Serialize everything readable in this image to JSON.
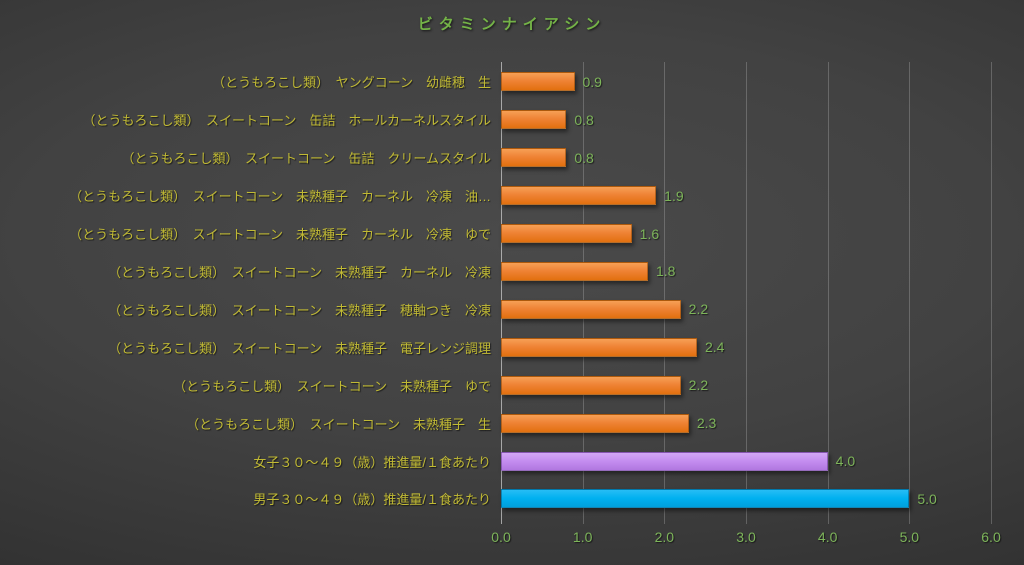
{
  "chart_data": {
    "type": "bar",
    "orientation": "horizontal",
    "title": "ビタミンナイアシン",
    "categories": [
      "（とうもろこし類）　ヤングコーン　幼雌穂　生",
      "（とうもろこし類）　スイートコーン　缶詰　ホールカーネルスタイル",
      "（とうもろこし類）　スイートコーン　缶詰　クリームスタイル",
      "（とうもろこし類）　スイートコーン　未熟種子　カーネル　冷凍　油…",
      "（とうもろこし類）　スイートコーン　未熟種子　カーネル　冷凍　ゆで",
      "（とうもろこし類）　スイートコーン　未熟種子　カーネル　冷凍",
      "（とうもろこし類）　スイートコーン　未熟種子　穂軸つき　冷凍",
      "（とうもろこし類）　スイートコーン　未熟種子　電子レンジ調理",
      "（とうもろこし類）　スイートコーン　未熟種子　ゆで",
      "（とうもろこし類）　スイートコーン　未熟種子　生",
      "女子３０～４９（歳）推進量/１食あたり",
      "男子３０～４９（歳）推進量/１食あたり"
    ],
    "values": [
      0.9,
      0.8,
      0.8,
      1.9,
      1.6,
      1.8,
      2.2,
      2.4,
      2.2,
      2.3,
      4.0,
      5.0
    ],
    "value_labels": [
      "0.9",
      "0.8",
      "0.8",
      "1.9",
      "1.6",
      "1.8",
      "2.2",
      "2.4",
      "2.2",
      "2.3",
      "4.0",
      "5.0"
    ],
    "bar_styles": [
      "orange",
      "orange",
      "orange",
      "orange",
      "orange",
      "orange",
      "orange",
      "orange",
      "orange",
      "orange",
      "purple",
      "blue"
    ],
    "xlim": [
      0,
      6
    ],
    "x_ticks": [
      "0.0",
      "1.0",
      "2.0",
      "3.0",
      "4.0",
      "5.0",
      "6.0"
    ],
    "grid": true,
    "legend": "none",
    "colors": {
      "bar_orange": "#ED7D31",
      "bar_purple": "#C38CEF",
      "bar_blue": "#00B0F0",
      "title_text": "#74B347",
      "value_text": "#7DB45A",
      "category_text": "#C1BA34",
      "gridline": "#8C8C8C",
      "background": "#3E3E3E"
    }
  }
}
